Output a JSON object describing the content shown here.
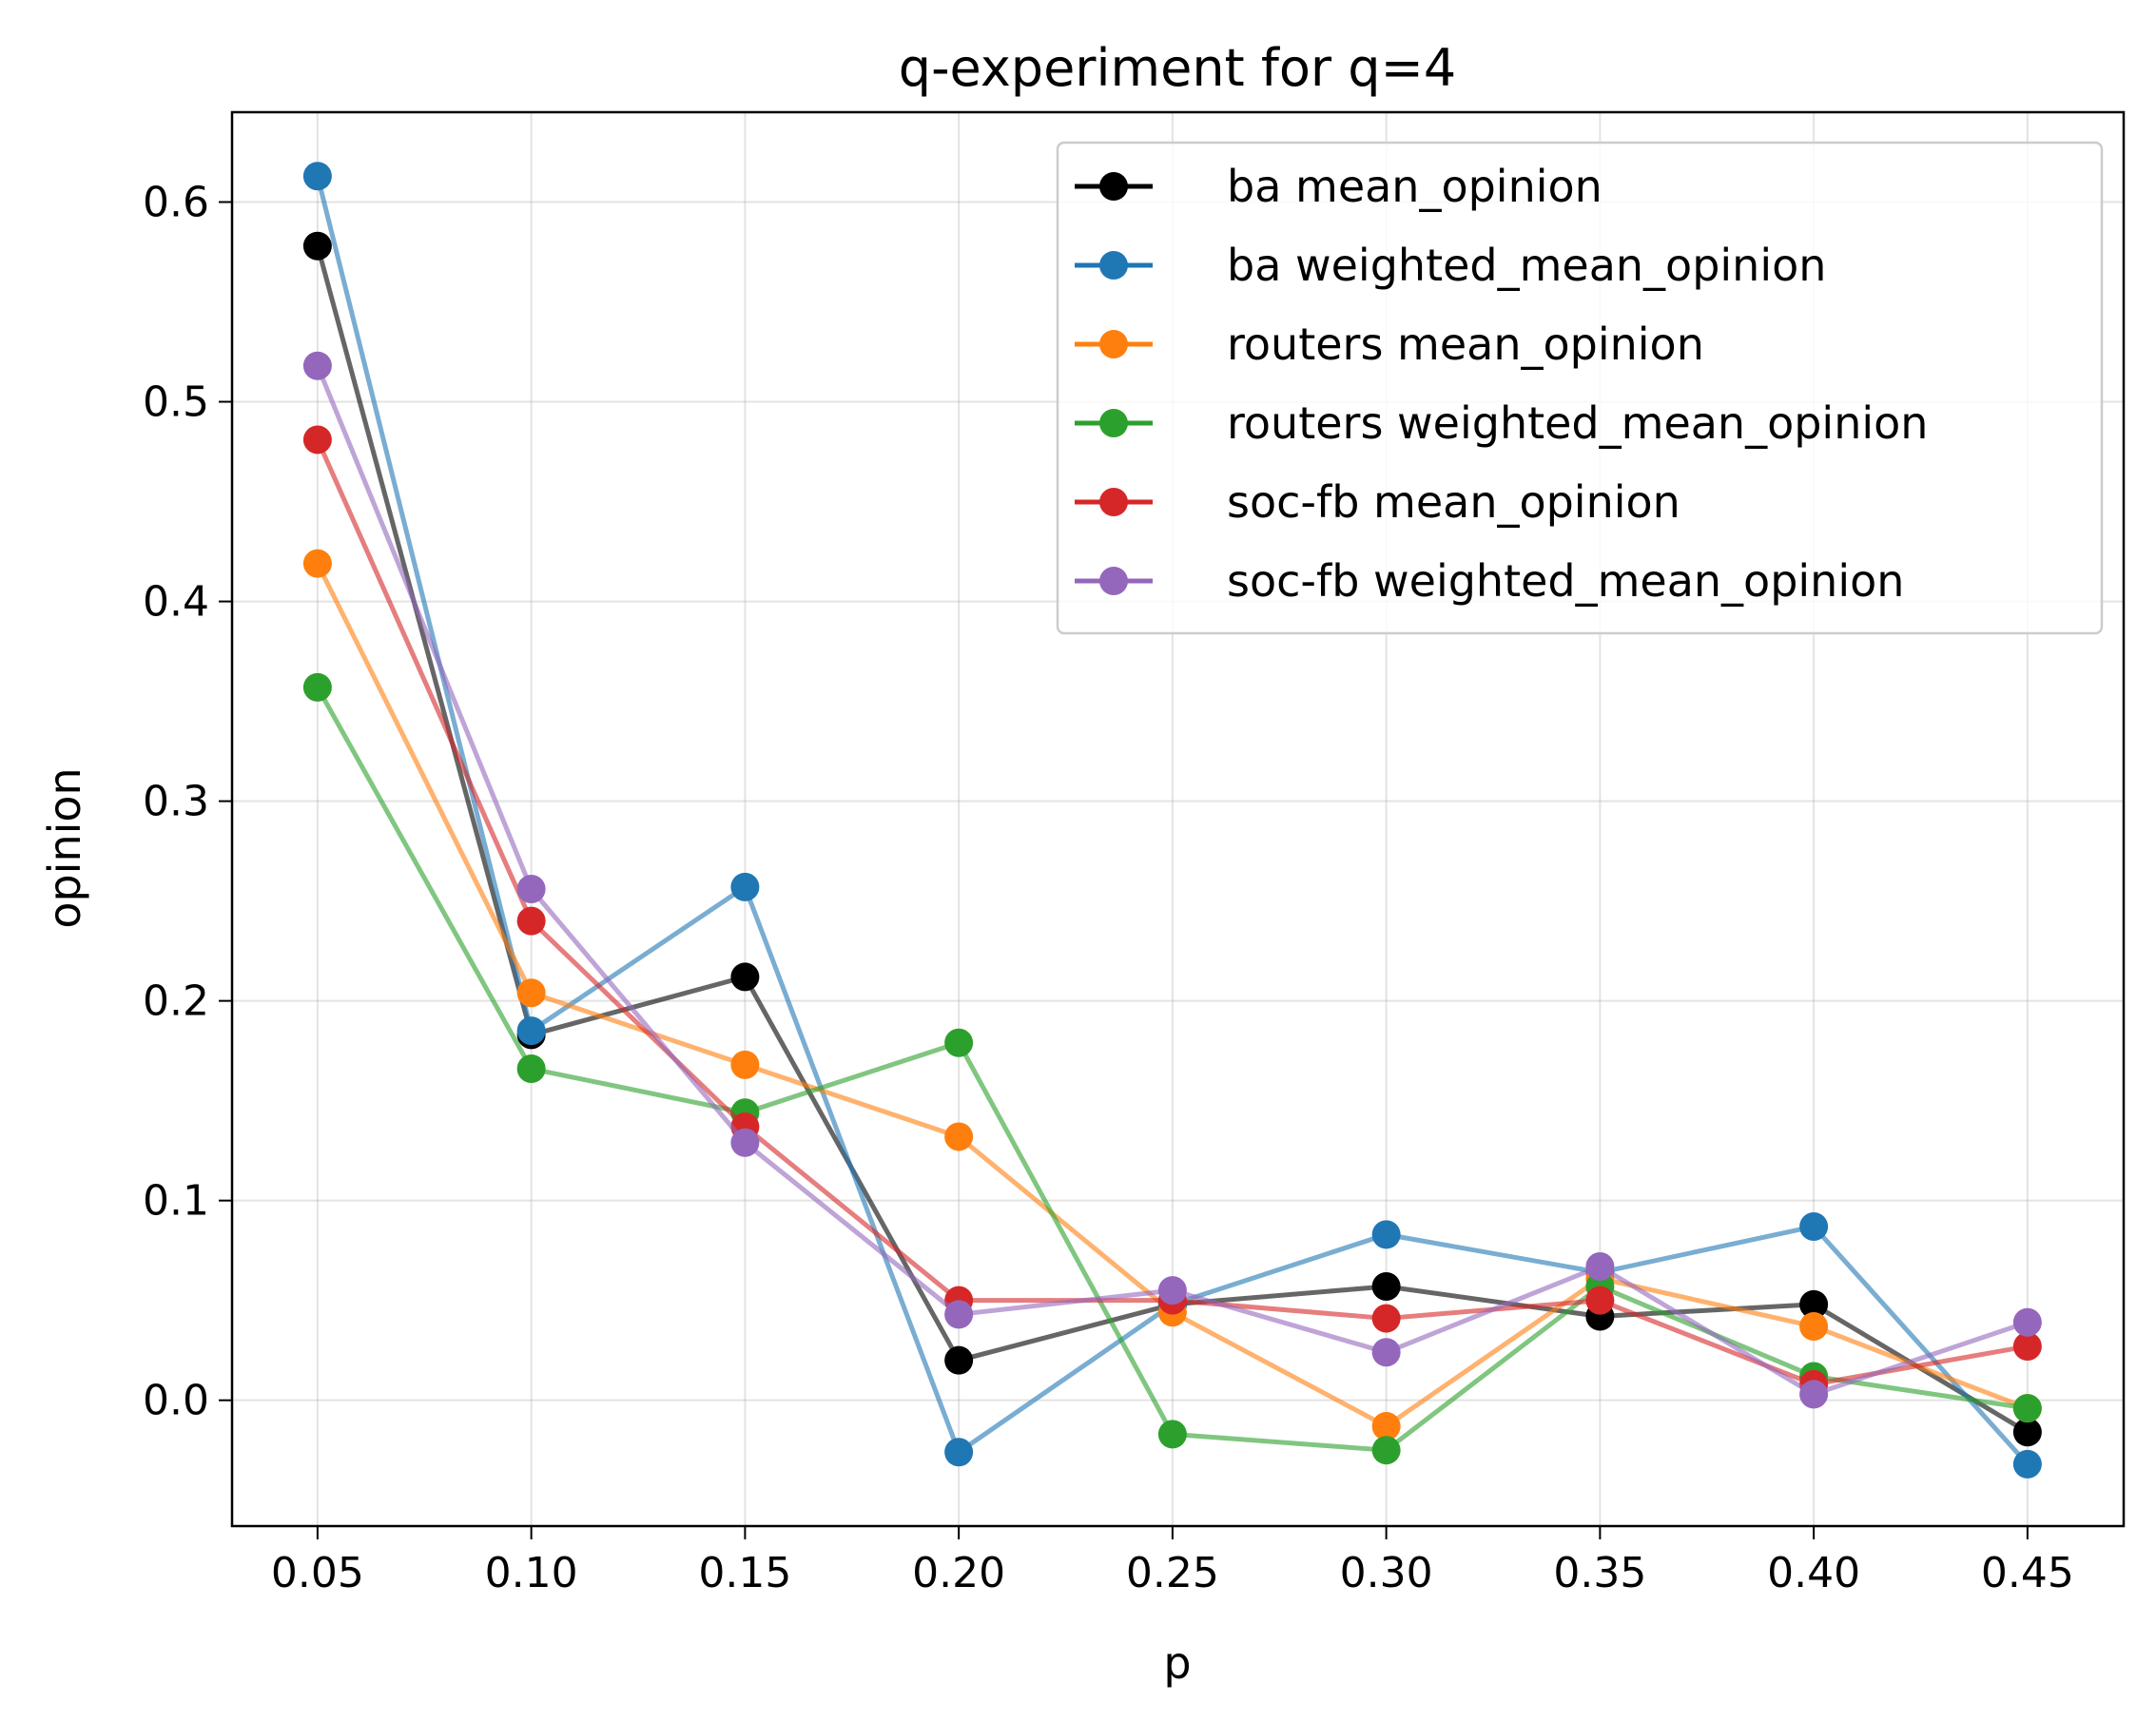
{
  "chart_data": {
    "type": "line",
    "title": "q-experiment for q=4",
    "xlabel": "p",
    "ylabel": "opinion",
    "x": [
      0.05,
      0.1,
      0.15,
      0.2,
      0.25,
      0.3,
      0.35,
      0.4,
      0.45
    ],
    "x_tick_labels": [
      "0.05",
      "0.10",
      "0.15",
      "0.20",
      "0.25",
      "0.30",
      "0.35",
      "0.40",
      "0.45"
    ],
    "y_ticks": [
      0.0,
      0.1,
      0.2,
      0.3,
      0.4,
      0.5,
      0.6
    ],
    "y_tick_labels": [
      "0.0",
      "0.1",
      "0.2",
      "0.3",
      "0.4",
      "0.5",
      "0.6"
    ],
    "xlim": [
      0.03,
      0.4725
    ],
    "ylim": [
      -0.063,
      0.645
    ],
    "grid": true,
    "legend_position": "top-right",
    "series": [
      {
        "name": "ba mean_opinion",
        "color": "#000000",
        "values": [
          0.578,
          0.183,
          0.212,
          0.02,
          0.048,
          0.057,
          0.042,
          0.048,
          -0.016
        ]
      },
      {
        "name": "ba weighted_mean_opinion",
        "color": "#1f77b4",
        "values": [
          0.613,
          0.185,
          0.257,
          -0.026,
          0.048,
          0.083,
          0.064,
          0.087,
          -0.032
        ]
      },
      {
        "name": "routers mean_opinion",
        "color": "#ff7f0e",
        "values": [
          0.419,
          0.204,
          0.168,
          0.132,
          0.044,
          -0.013,
          0.061,
          0.037,
          -0.004
        ]
      },
      {
        "name": "routers weighted_mean_opinion",
        "color": "#2ca02c",
        "values": [
          0.357,
          0.166,
          0.144,
          0.179,
          -0.017,
          -0.025,
          0.057,
          0.012,
          -0.004
        ]
      },
      {
        "name": "soc-fb mean_opinion",
        "color": "#d62728",
        "values": [
          0.481,
          0.24,
          0.137,
          0.05,
          0.05,
          0.041,
          0.05,
          0.008,
          0.027
        ]
      },
      {
        "name": "soc-fb weighted_mean_opinion",
        "color": "#9467bd",
        "values": [
          0.518,
          0.256,
          0.129,
          0.043,
          0.055,
          0.024,
          0.067,
          0.003,
          0.039
        ]
      }
    ]
  }
}
